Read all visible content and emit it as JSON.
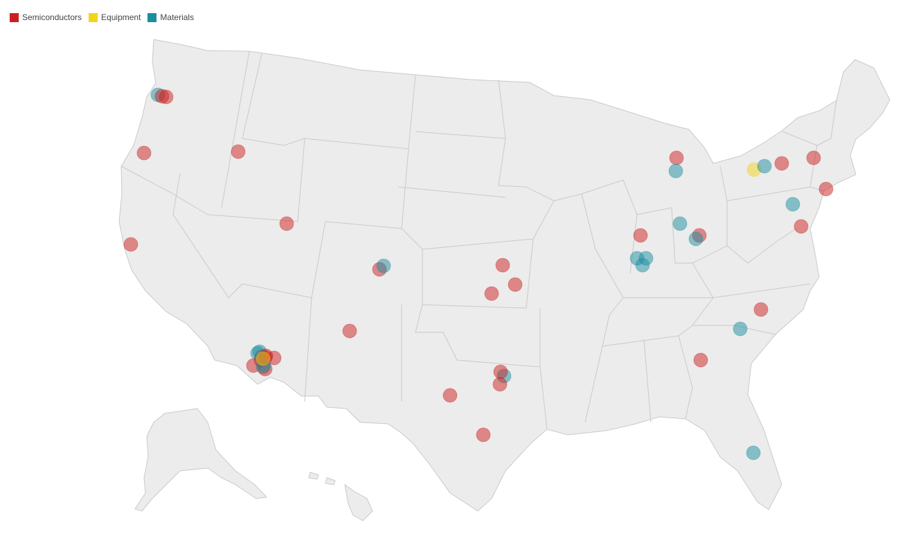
{
  "legend": {
    "items": [
      {
        "label": "Semiconductors",
        "color": "#cc1f1f"
      },
      {
        "label": "Equipment",
        "color": "#f2d41a"
      },
      {
        "label": "Materials",
        "color": "#1b8ea0"
      }
    ]
  },
  "map": {
    "fill": "#ececec",
    "stroke": "#c9c9c9",
    "markers": [
      {
        "category": "Materials",
        "color": "#1b8ea0"
      },
      {
        "category": "Semiconductors",
        "color": "#cc1f1f"
      },
      {
        "category": "Semiconductors",
        "color": "#cc1f1f"
      },
      {
        "category": "Semiconductors",
        "color": "#cc1f1f"
      },
      {
        "category": "Semiconductors",
        "color": "#cc1f1f"
      },
      {
        "category": "Semiconductors",
        "color": "#cc1f1f"
      },
      {
        "category": "Semiconductors",
        "color": "#cc1f1f"
      },
      {
        "category": "Semiconductors",
        "color": "#cc1f1f"
      },
      {
        "category": "Materials",
        "color": "#1b8ea0"
      },
      {
        "category": "Semiconductors",
        "color": "#cc1f1f"
      },
      {
        "category": "Semiconductors",
        "color": "#cc1f1f"
      },
      {
        "category": "Semiconductors",
        "color": "#cc1f1f"
      },
      {
        "category": "Semiconductors",
        "color": "#cc1f1f"
      },
      {
        "category": "Materials",
        "color": "#1b8ea0"
      },
      {
        "category": "Semiconductors",
        "color": "#cc1f1f"
      },
      {
        "category": "Semiconductors",
        "color": "#cc1f1f"
      },
      {
        "category": "Semiconductors",
        "color": "#cc1f1f"
      },
      {
        "category": "Semiconductors",
        "color": "#cc1f1f"
      },
      {
        "category": "Semiconductors",
        "color": "#cc1f1f"
      },
      {
        "category": "Semiconductors",
        "color": "#cc1f1f"
      },
      {
        "category": "Semiconductors",
        "color": "#cc1f1f"
      },
      {
        "category": "Materials",
        "color": "#1b8ea0"
      },
      {
        "category": "Materials",
        "color": "#1b8ea0"
      },
      {
        "category": "Semiconductors",
        "color": "#cc1f1f"
      },
      {
        "category": "Semiconductors",
        "color": "#cc1f1f"
      },
      {
        "category": "Semiconductors",
        "color": "#cc1f1f"
      },
      {
        "category": "Semiconductors",
        "color": "#cc1f1f"
      },
      {
        "category": "Semiconductors",
        "color": "#cc1f1f"
      },
      {
        "category": "Materials",
        "color": "#1b8ea0"
      },
      {
        "category": "Materials",
        "color": "#1b8ea0"
      },
      {
        "category": "Materials",
        "color": "#1b8ea0"
      },
      {
        "category": "Semiconductors",
        "color": "#cc1f1f"
      },
      {
        "category": "Materials",
        "color": "#1b8ea0"
      },
      {
        "category": "Materials",
        "color": "#1b8ea0"
      },
      {
        "category": "Materials",
        "color": "#1b8ea0"
      },
      {
        "category": "Semiconductors",
        "color": "#cc1f1f"
      },
      {
        "category": "Semiconductors",
        "color": "#cc1f1f"
      },
      {
        "category": "Equipment",
        "color": "#f2d41a"
      },
      {
        "category": "Materials",
        "color": "#1b8ea0"
      },
      {
        "category": "Materials",
        "color": "#1b8ea0"
      },
      {
        "category": "Semiconductors",
        "color": "#cc1f1f"
      },
      {
        "category": "Semiconductors",
        "color": "#cc1f1f"
      },
      {
        "category": "Materials",
        "color": "#1b8ea0"
      },
      {
        "category": "Semiconductors",
        "color": "#cc1f1f"
      },
      {
        "category": "Materials",
        "color": "#1b8ea0"
      },
      {
        "category": "Materials",
        "color": "#1b8ea0"
      },
      {
        "category": "Materials",
        "color": "#1b8ea0"
      },
      {
        "category": "Semiconductors",
        "color": "#cc1f1f"
      },
      {
        "category": "Semiconductors",
        "color": "#cc1f1f"
      },
      {
        "category": "Equipment",
        "color": "#f2d41a"
      }
    ]
  }
}
